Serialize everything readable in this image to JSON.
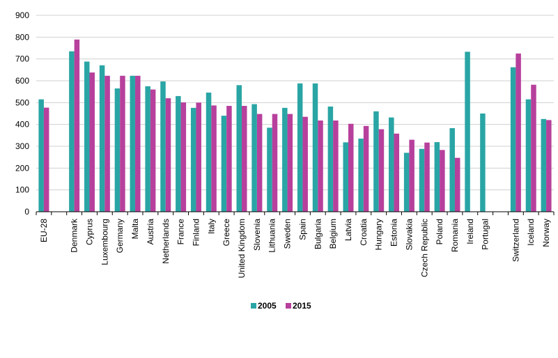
{
  "chart_data": {
    "type": "bar",
    "categories": [
      "EU-28",
      "",
      "Denmark",
      "Cyprus",
      "Luxembourg",
      "Germany",
      "Malta",
      "Austria",
      "Netherlands",
      "France",
      "Finland",
      "Italy",
      "Greece",
      "United Kingdom",
      "Slovenia",
      "Lithuania",
      "Sweden",
      "Spain",
      "Bulgaria",
      "Belgium",
      "Latvia",
      "Croatia",
      "Hungary",
      "Estonia",
      "Slovakia",
      "Czech Republic",
      "Poland",
      "Romania",
      "Ireland",
      "Portugal",
      "",
      "Switzerland",
      "Iceland",
      "Norway"
    ],
    "series": [
      {
        "name": "2005",
        "color": "#2aa5a5",
        "values": [
          515,
          null,
          735,
          688,
          671,
          565,
          623,
          575,
          597,
          530,
          476,
          546,
          440,
          580,
          493,
          385,
          476,
          588,
          588,
          482,
          318,
          335,
          460,
          432,
          270,
          288,
          319,
          383,
          733,
          450,
          null,
          662,
          515,
          425
        ]
      },
      {
        "name": "2015",
        "color": "#b7409c",
        "values": [
          477,
          null,
          789,
          638,
          623,
          623,
          623,
          560,
          520,
          501,
          500,
          487,
          485,
          485,
          448,
          448,
          448,
          435,
          418,
          418,
          403,
          393,
          378,
          358,
          330,
          317,
          283,
          247,
          null,
          null,
          null,
          725,
          582,
          420
        ]
      }
    ],
    "ylim": [
      0,
      900
    ],
    "yticks": [
      0,
      100,
      200,
      300,
      400,
      500,
      600,
      700,
      800,
      900
    ],
    "grid": true,
    "legend": "bottom-center"
  }
}
